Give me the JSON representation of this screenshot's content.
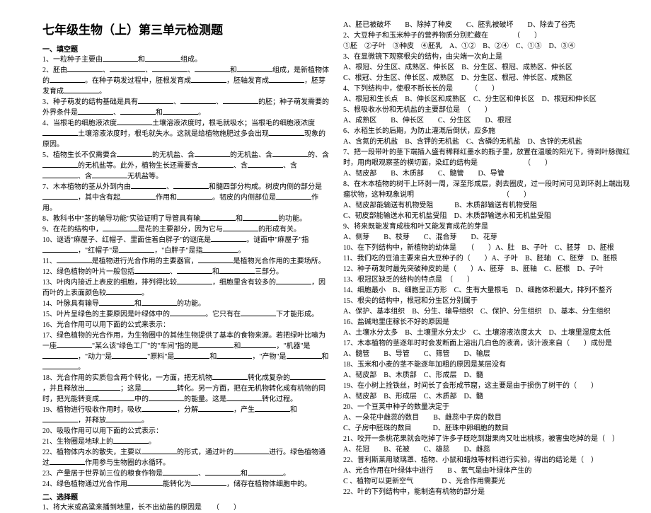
{
  "title": "七年级生物（上）第三单元检测题",
  "section1": "一、填空题",
  "section2": "二、选择题",
  "left": {
    "q1": "1、一粒种子主要由____________和____________组成。",
    "q2": "2、胚由____________、____________、____________、____________和____________组成，是新植物体的____________。在种子萌发过程中，胚根发育成____________，胚轴发育成____________，胚芽发育成____________。",
    "q3": "3、种子萌发的结构基础是具有____________、____________、____________的胚；种子萌发需要的外界条件是____________、____________和____________。",
    "q4": "4、当根毛的细胞液浓度____________土壤溶液浓度时，根毛就吸水；当根毛的细胞液浓度____________土壤溶液浓度时，根毛就失水。这就是给植物施肥过多会出现____________现象的原因。",
    "q5": "5、植物生长不仅需要含____________的无机盐、含____________的无机盐、含____________的、含____________的无机盐等。此外，植物生长还需要含____________、含____________、含____________、含____________无机盐等。",
    "q7": "7、木本植物的茎从外到内由____________、____________和髓四部分构成。树皮内侧的部分是____________，其中含有起____________作用和____________。韧皮的内侧部位是____________作用。",
    "q8": "8、教科书中\"茎的输导功能\"实验证明了导管具有输____________和____________的功能。",
    "q9": "9、在花的结构中，____________是花的主要部分，因为它与____________的形成有关。",
    "q10": "10、谜语\"麻屋子、红帽子、里面住着白胖子\"的谜底是____________。谜面中\"麻屋子\"指____________，\"红帽子\"是____________，\"白胖子\"是指____________。",
    "q11": "11、____________是植物进行光合作用的主要器官，____________是植物光合作用的主要场所。",
    "q12": "12、绿色植物的叶片一般包括____________、____________和____________三部分。",
    "q13": "13、叶肉内接近上表皮的细胞，排列得比较____________，细胞里含有较多的____________，因而叶的上表面颜色较____________。",
    "q14": "14、叶脉具有输导____________和____________的功能。",
    "q15": "15、叶片呈绿色的主要原因是叶绿体中的____________。它只有在____________下才能形成。",
    "q16": "16、光合作用可以用下面的公式来表示：",
    "q17": "17、绿色植物的光合作用，为生物圈中的其他生物提供了基本的食物来源。若把绿叶比喻为一座____________\"某么该\"绿色工厂\"的\"车间\"指的是____________和____________，\"机器\"是____________，\"动力\"是____________\"原料\"是____________和____________，\"产物\"是____________和____________。",
    "q18": "18、光合作用的实质包含两个转化，一方面，把无机物____________转化成复杂的____________，并且释放出____________；这是____________转化。另一方面，把在无机物转化成有机物的同时，把光能转变成____________中的____________的能量。这是____________转化过程。",
    "q19": "19、植物进行吸收作用时，吸收____________，分解____________，产生____________和____________，并释放____________。",
    "q20": "20、吸吸作用可以用下面的公式表示：",
    "q21": "21、生物圈是地球上的____________。",
    "q22": "22、植物体内水的散失，主要以____________的形式，通过叶的____________进行。绿色植物通过____________作用参与生物圈的水循环。",
    "q23": "23、产量居于世界前三位的粮食作物是____________、____________和____________。",
    "q24": "24、绿色植物通过光合作用____________能转化为____________，储存在植物体细胞中的。",
    "mc1": "1、将大米或高粱来播到地里，长不出幼苗的原因是　　（　　）"
  },
  "right": {
    "r1": "A、胚已被破坏　　B、除掉了种皮　　C、胚乳被破坏　　D、除去了谷壳",
    "r2": "2、大豆种子和玉米种子的营养物质分别贮藏在　　　　（　　）",
    "r2opts": "①胚　②子叶　③种皮　④胚乳　A、①②　B、②④　C、①③　D、③④",
    "r3": "3、在显微镜下观察根尖的结构，由尖端一次向上是",
    "r3a": "A、根冠、分生区、成熟区、伸长区　B、分生区、根冠、成熟区、伸长区",
    "r3c": "C、根冠、分生区、伸长区、成熟区　D、分生区、根冠、伸长区、成熟区",
    "r4": "4、下列结构中，使根不断长长的是　　　（　　）",
    "r4a": "A、根冠和生长点　B、伸长区和成熟区　C、分生区和伸长区　D、根冠和伸长区",
    "r5": "5、根吸收水份和无机盐的主要部位是　（　　）",
    "r5a": "A、成熟区　　B、伸长区　　C、分生区　　D、根冠",
    "r6": "6、水稻生长的后期，为防止灌溉后倒伏，应多施",
    "r6a": "A、含氮的无机盐　B、含钾的无机盐　C、含磷的无机盐　D、含锌的无机盐",
    "r7": "7、把一段带叶的茎下端插入盛有稀释红墨水的瓶子里，放置在温暖的阳光下，待到叶脉微红时，用肉眼观察茎的横切面，染红的结构是　　　　　　　（　　）",
    "r7a": "A、韧皮部　　B、木质部　　C、髓管　　D、导管",
    "r8": "8、在木本植物的树干上环剥一周，深至形成层，剥去圈皮，过一段时间可见到环剥上端出现瘤状物，这种现象说明　　　　　　　　　　　　　（　　）",
    "r8a": "A、韧皮部能输送有机物受阻　　　B、木质部输送有机物受阻",
    "r8c": "C、韧皮部能输送水和无机盐受阻　D、木质部输送水和无机盐受阻",
    "r9": "9、将来既能发育成枝和叶又能发育成花的芽是",
    "r9a": "A、侧芽　　B、枝芽　　C、混合芽　　D、花芽",
    "r10": "10、在下列结构中，新植物的幼体是　　（　　）A、肚　B、子叶　C、胚芽　D、胚根",
    "r11": "11、我们吃的豆油主要来自大豆种子的（　　）A、子叶　B、胚轴　C、胚芽　D、胚根",
    "r12": "12、种子萌发时最先突破种皮的是（　　）A、胚芽　B、胚轴　C、胚根　D、子叶",
    "r13": "13、根冠区缺乏的结构的特点是　（　　）",
    "r14": "14、细胞最小　B、细胞呈正方形　C、生有大量根毛　D、细胞体积最大，排列不整齐",
    "r15": "15、根尖的结构中，根冠和分生区分别属于",
    "r15a": "A、保护、基本组织　B、分生、输导组织　C、保护、分生组织　D、基本、分生组织",
    "r16": "16、盐碱地里庄稼长不好的原因是",
    "r16a": "A、土壤水分太多　B、土壤里水分太少　C、土壤溶液浓度太大　D、土壤里湿度太低",
    "r17": "17、木本植物的茎逐年时时会发断面上溶出几白色的液滴，该汁液来自（　　）成份是",
    "r17a": "A、髓管　　B、导管　　C、筛管　　D、输层",
    "r18": "18、玉米和小麦的茎不能逐年加粗的原因是某层没有",
    "r18a": "A、韧皮部　B、木质部　C、形成层　D、髓",
    "r19": "19、在小树上拴铁丝，时间长了会形成节窟，这主要是由于损伤了树干的（　　）",
    "r19a": "A、韧皮部　B、形成层　C、木质部　D、髓",
    "r20": "20、一个豆荚中种子的数量决定于",
    "r20a": "A、一朵花中雌蕊的数目　　B、雌蕊中子房的数目",
    "r20c": "C、子房中胚珠的数目　　　D、胚珠中卵细胞的数目",
    "r21": "21、咬开一条桃花果就会吃掉了许多子既吃到甜果肉又吐出桃核，被害虫吃掉的是（　）",
    "r21a": "A、花冠　　B、花被　　C、雄蕊　　D、雌蕊",
    "r22": "22、普利斯莱用玻璃罩、植物、小鼠和蜡烛等材料进行实验，得出的结论是（　）",
    "r22a": "A、光合作用在叶绿体中进行　　B 、氧气是由叶绿体产生的",
    "r22c": "C 、植物可以更新空气　　　　D 、光合作用需要光",
    "r22x": "22、叶的下列结构中，能制造有机物的部分是"
  }
}
